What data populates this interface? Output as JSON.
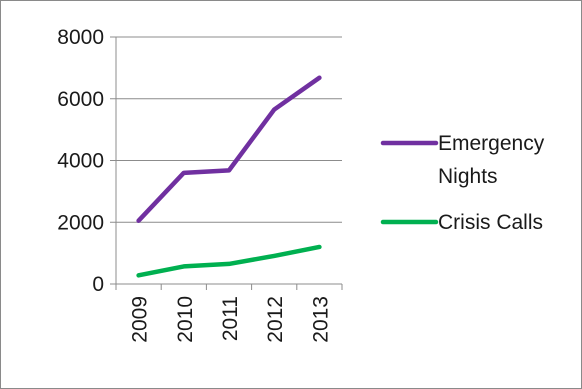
{
  "chart_data": {
    "type": "line",
    "title": "",
    "xlabel": "",
    "ylabel": "",
    "x": [
      "2009",
      "2010",
      "2011",
      "2012",
      "2013"
    ],
    "ylim": [
      0,
      8000
    ],
    "yticks": [
      0,
      2000,
      4000,
      6000,
      8000
    ],
    "grid": true,
    "legend_position": "right",
    "series": [
      {
        "name_lines": [
          "Emergency",
          "Nights"
        ],
        "color": "#7030a0",
        "values": [
          2050,
          3600,
          3680,
          5650,
          6680
        ]
      },
      {
        "name_lines": [
          "Crisis Calls"
        ],
        "color": "#00b050",
        "values": [
          280,
          570,
          650,
          910,
          1200
        ]
      }
    ]
  }
}
